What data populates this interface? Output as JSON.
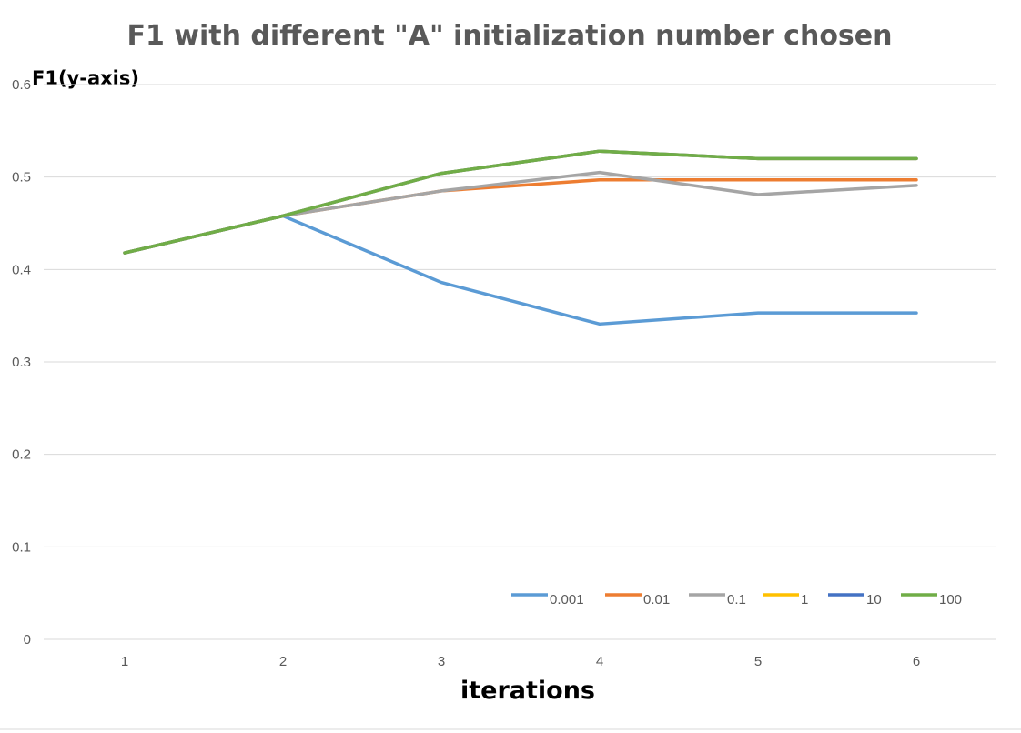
{
  "chart_data": {
    "type": "line",
    "title": "F1 with different \"A\" initialization number chosen",
    "xlabel": "iterations",
    "ylabel": "F1(y-axis)",
    "categories": [
      "1",
      "2",
      "3",
      "4",
      "5",
      "6"
    ],
    "ylim": [
      0,
      0.6
    ],
    "yticks": [
      "0",
      "0.1",
      "0.2",
      "0.3",
      "0.4",
      "0.5",
      "0.6"
    ],
    "grid": true,
    "legend_position": "bottom-right",
    "series": [
      {
        "name": "0.001",
        "color": "#5b9bd5",
        "values": [
          0.418,
          0.458,
          0.386,
          0.341,
          0.353,
          0.353
        ]
      },
      {
        "name": "0.01",
        "color": "#ed7d31",
        "values": [
          0.418,
          0.458,
          0.485,
          0.497,
          0.497,
          0.497
        ]
      },
      {
        "name": "0.1",
        "color": "#a5a5a5",
        "values": [
          0.418,
          0.458,
          0.485,
          0.505,
          0.481,
          0.491
        ]
      },
      {
        "name": "1",
        "color": "#ffc000",
        "values": [
          0.418,
          0.458,
          0.504,
          0.528,
          0.52,
          0.52
        ]
      },
      {
        "name": "10",
        "color": "#4472c4",
        "values": [
          0.418,
          0.458,
          0.504,
          0.528,
          0.52,
          0.52
        ]
      },
      {
        "name": "100",
        "color": "#70ad47",
        "values": [
          0.418,
          0.458,
          0.504,
          0.528,
          0.52,
          0.52
        ]
      }
    ]
  }
}
